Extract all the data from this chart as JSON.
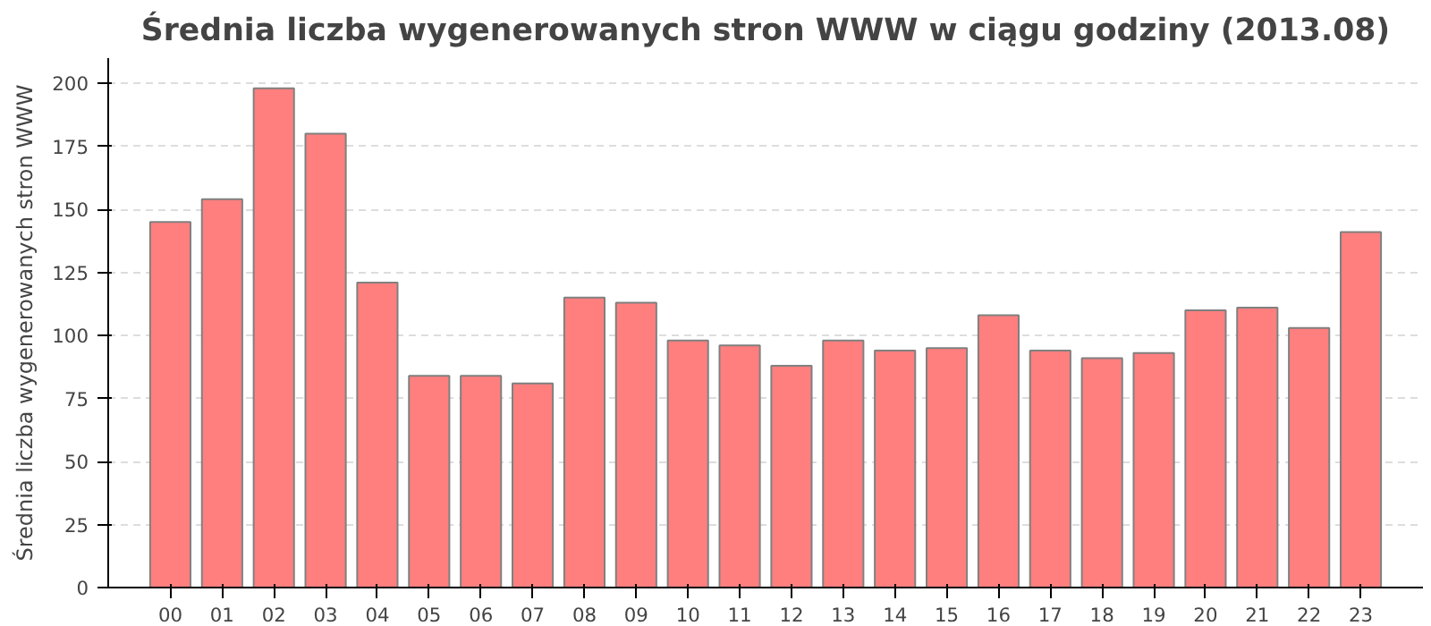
{
  "chart_data": {
    "type": "bar",
    "title": "Średnia liczba wygenerowanych stron WWW w ciągu godziny (2013.08)",
    "ylabel": "Średnia liczba wygenerowanych stron WWW",
    "categories": [
      "00",
      "01",
      "02",
      "03",
      "04",
      "05",
      "06",
      "07",
      "08",
      "09",
      "10",
      "11",
      "12",
      "13",
      "14",
      "15",
      "16",
      "17",
      "18",
      "19",
      "20",
      "21",
      "22",
      "23"
    ],
    "values": [
      145,
      154,
      198,
      180,
      121,
      84,
      84,
      81,
      115,
      113,
      98,
      96,
      88,
      98,
      94,
      95,
      108,
      94,
      91,
      93,
      110,
      111,
      103,
      141
    ],
    "color": "#ff7f7f",
    "ylim": [
      0,
      210
    ],
    "yticks": [
      0,
      25,
      50,
      75,
      100,
      125,
      150,
      175,
      200
    ],
    "grid": "y"
  }
}
